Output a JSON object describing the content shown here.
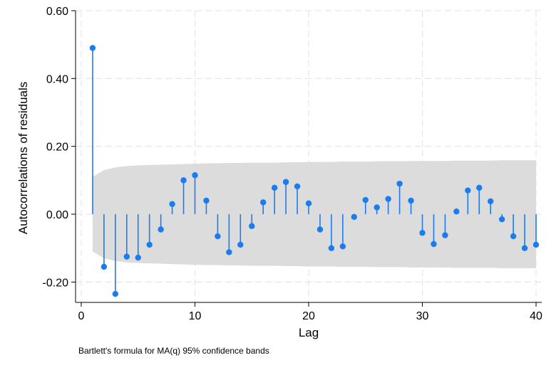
{
  "chart_data": {
    "type": "scatter",
    "subtype": "acf-stem",
    "xlabel": "Lag",
    "ylabel": "Autocorrelations of residuals",
    "note": "Bartlett's formula for MA(q) 95% confidence bands",
    "xlim": [
      -0.5,
      40.5
    ],
    "ylim": [
      -0.26,
      0.6
    ],
    "xticks": [
      0,
      10,
      20,
      30,
      40
    ],
    "xtick_labels": [
      "0",
      "10",
      "20",
      "30",
      "40"
    ],
    "yticks": [
      -0.2,
      0,
      0.2,
      0.4,
      0.6
    ],
    "ytick_labels": [
      "-0.20",
      "0.00",
      "0.20",
      "0.40",
      "0.60"
    ],
    "grid": true,
    "colors": {
      "marker": "#1a7cf0",
      "band": "#dcdcdc",
      "grid": "#e6e6e6"
    },
    "lags": [
      1,
      2,
      3,
      4,
      5,
      6,
      7,
      8,
      9,
      10,
      11,
      12,
      13,
      14,
      15,
      16,
      17,
      18,
      19,
      20,
      21,
      22,
      23,
      24,
      25,
      26,
      27,
      28,
      29,
      30,
      31,
      32,
      33,
      34,
      35,
      36,
      37,
      38,
      39,
      40
    ],
    "acf": [
      0.49,
      -0.155,
      -0.235,
      -0.125,
      -0.128,
      -0.09,
      -0.045,
      0.03,
      0.1,
      0.115,
      0.04,
      -0.065,
      -0.112,
      -0.09,
      -0.035,
      0.035,
      0.078,
      0.095,
      0.082,
      0.032,
      -0.045,
      -0.1,
      -0.095,
      -0.008,
      0.042,
      0.02,
      0.045,
      0.09,
      0.04,
      -0.055,
      -0.088,
      -0.062,
      0.008,
      0.07,
      0.078,
      0.038,
      -0.015,
      -0.065,
      -0.1,
      -0.09
    ],
    "band": [
      0.11,
      0.13,
      0.138,
      0.142,
      0.144,
      0.145,
      0.146,
      0.147,
      0.148,
      0.149,
      0.15,
      0.15,
      0.151,
      0.151,
      0.152,
      0.152,
      0.152,
      0.153,
      0.153,
      0.154,
      0.154,
      0.154,
      0.155,
      0.155,
      0.155,
      0.156,
      0.156,
      0.156,
      0.157,
      0.157,
      0.157,
      0.157,
      0.158,
      0.158,
      0.158,
      0.158,
      0.159,
      0.159,
      0.159,
      0.159
    ]
  }
}
